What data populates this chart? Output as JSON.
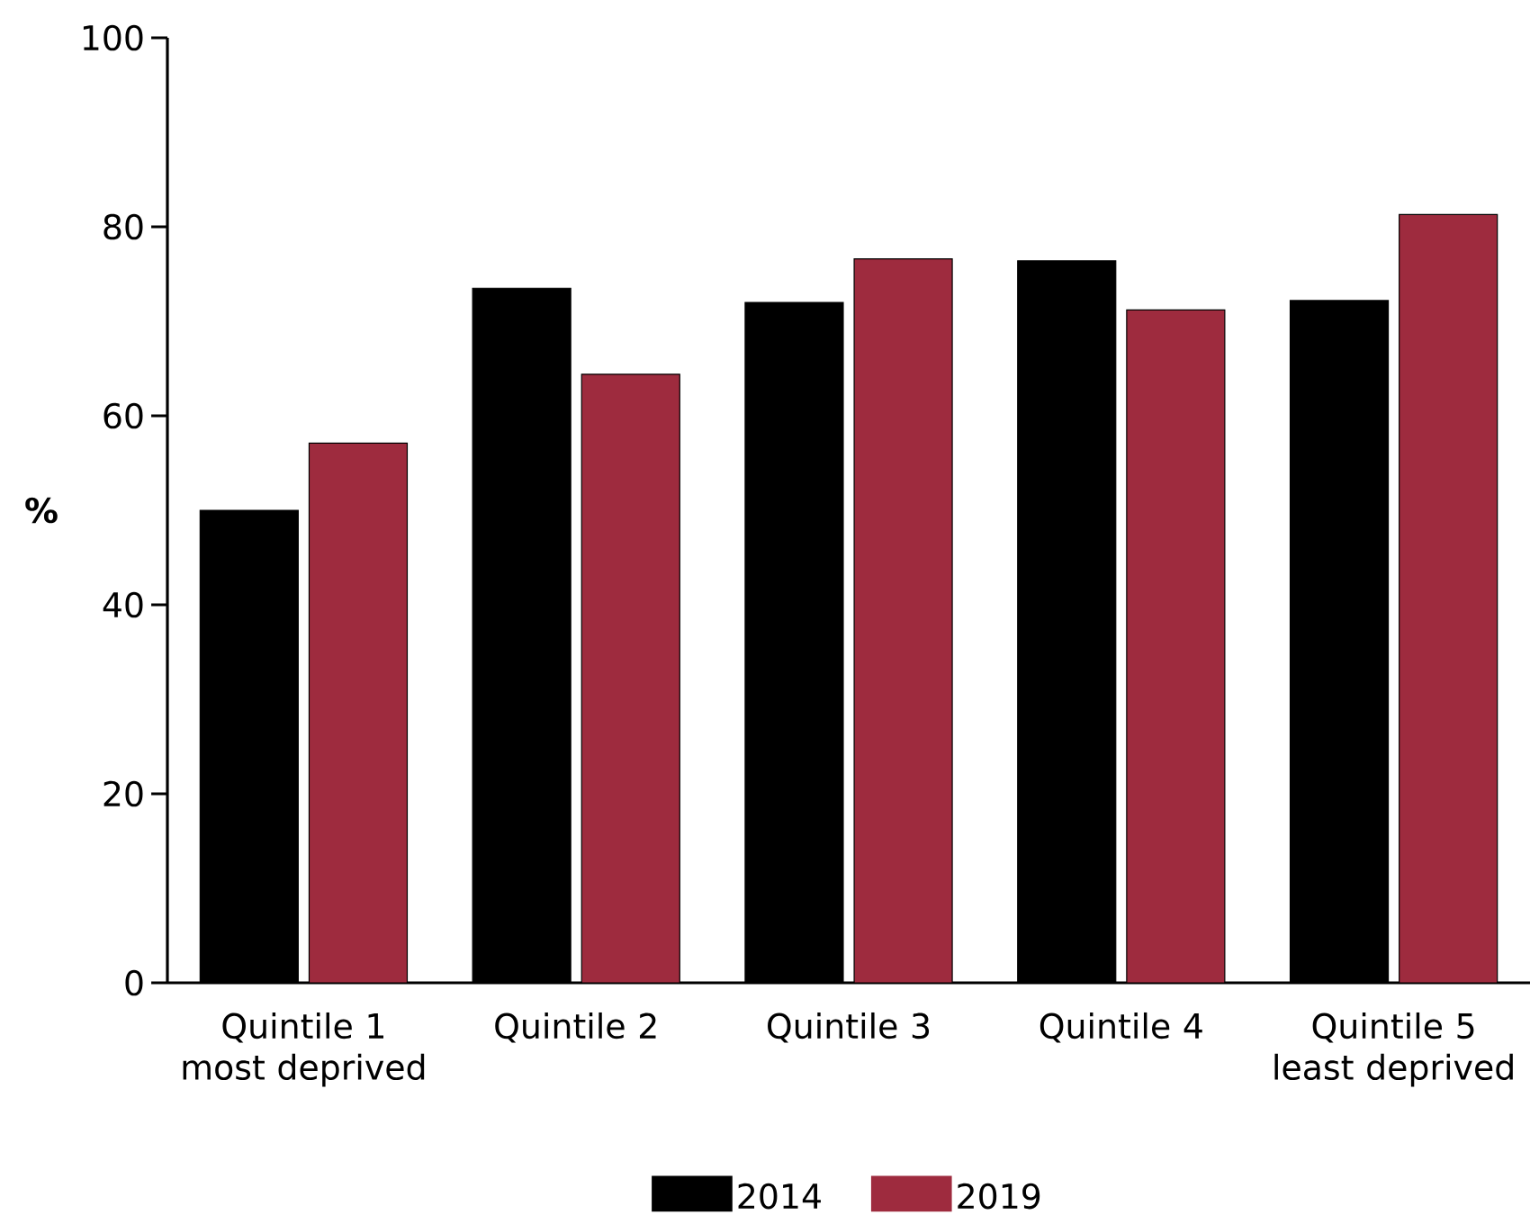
{
  "chart_data": {
    "type": "bar",
    "ylabel": "%",
    "categories": [
      "Quintile 1 most deprived",
      "Quintile 2",
      "Quintile 3",
      "Quintile 4",
      "Quintile 5 least deprived"
    ],
    "series": [
      {
        "name": "2014",
        "color": "#000000",
        "values": [
          50,
          73.5,
          72,
          76.4,
          72.2
        ]
      },
      {
        "name": "2019",
        "color": "#9e2b3e",
        "values": [
          57.1,
          64.4,
          76.6,
          71.2,
          81.3
        ]
      }
    ],
    "ylim": [
      0,
      100
    ],
    "yticks": [
      0,
      20,
      40,
      60,
      80,
      100
    ],
    "legend": "bottom",
    "grid": false
  }
}
